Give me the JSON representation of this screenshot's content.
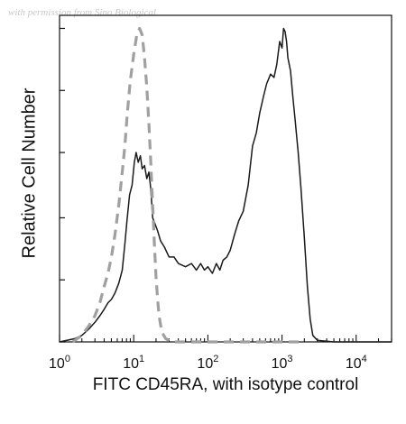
{
  "watermark": "with permission from Sino Biological",
  "chart_data": {
    "type": "line",
    "xlabel": "FITC CD45RA, with isotype control",
    "ylabel": "Relative Cell Number",
    "x_scale": "log",
    "xlim": [
      1,
      30000
    ],
    "ylim": [
      0,
      100
    ],
    "x_ticks": [
      {
        "value": 1,
        "base": "10",
        "exp": "0"
      },
      {
        "value": 10,
        "base": "10",
        "exp": "1"
      },
      {
        "value": 100,
        "base": "10",
        "exp": "2"
      },
      {
        "value": 1000,
        "base": "10",
        "exp": "3"
      },
      {
        "value": 10000,
        "base": "10",
        "exp": "4"
      }
    ],
    "y_ticks": [
      0,
      19,
      38,
      58,
      77,
      96
    ],
    "series": [
      {
        "style": "solid",
        "color": "#1a1a1a",
        "points": [
          [
            1.0,
            0
          ],
          [
            1.6,
            1
          ],
          [
            2.0,
            2
          ],
          [
            2.5,
            4
          ],
          [
            3.0,
            6
          ],
          [
            3.5,
            8
          ],
          [
            4.0,
            10
          ],
          [
            4.5,
            12
          ],
          [
            5.0,
            13
          ],
          [
            5.6,
            15
          ],
          [
            6.3,
            18
          ],
          [
            7.0,
            22
          ],
          [
            7.6,
            30
          ],
          [
            8.1,
            37
          ],
          [
            8.8,
            45
          ],
          [
            9.5,
            48
          ],
          [
            10.2,
            55
          ],
          [
            10.8,
            58
          ],
          [
            11.5,
            55
          ],
          [
            12.3,
            57
          ],
          [
            13.0,
            53
          ],
          [
            14.0,
            54
          ],
          [
            15.0,
            50
          ],
          [
            16.0,
            52
          ],
          [
            17.0,
            47
          ],
          [
            18.0,
            38
          ],
          [
            19.5,
            36
          ],
          [
            21.0,
            34
          ],
          [
            23.0,
            31
          ],
          [
            26.0,
            29
          ],
          [
            30.0,
            26
          ],
          [
            35.0,
            26
          ],
          [
            40.0,
            24
          ],
          [
            50.0,
            23
          ],
          [
            60.0,
            24
          ],
          [
            70.0,
            22
          ],
          [
            80.0,
            24
          ],
          [
            90.0,
            22
          ],
          [
            100.0,
            23
          ],
          [
            115.0,
            21
          ],
          [
            130.0,
            24
          ],
          [
            145.0,
            22
          ],
          [
            160.0,
            25
          ],
          [
            180.0,
            26
          ],
          [
            200.0,
            28
          ],
          [
            230.0,
            33
          ],
          [
            260.0,
            37
          ],
          [
            300.0,
            40
          ],
          [
            350.0,
            48
          ],
          [
            400.0,
            60
          ],
          [
            450.0,
            64
          ],
          [
            500.0,
            70
          ],
          [
            560.0,
            75
          ],
          [
            620.0,
            79
          ],
          [
            700.0,
            82
          ],
          [
            780.0,
            81
          ],
          [
            850.0,
            85
          ],
          [
            930.0,
            92
          ],
          [
            1000.0,
            90
          ],
          [
            1050.0,
            96
          ],
          [
            1100.0,
            95
          ],
          [
            1150.0,
            92
          ],
          [
            1200.0,
            87
          ],
          [
            1300.0,
            83
          ],
          [
            1400.0,
            75
          ],
          [
            1500.0,
            68
          ],
          [
            1650.0,
            58
          ],
          [
            1800.0,
            47
          ],
          [
            2000.0,
            32
          ],
          [
            2200.0,
            17
          ],
          [
            2400.0,
            7
          ],
          [
            2600.0,
            2
          ],
          [
            3000.0,
            0.5
          ],
          [
            5000.0,
            0
          ],
          [
            30000.0,
            0
          ]
        ]
      },
      {
        "style": "dashed",
        "color": "#a0a0a0",
        "points": [
          [
            1.5,
            0
          ],
          [
            2.0,
            2
          ],
          [
            2.5,
            5
          ],
          [
            3.0,
            8
          ],
          [
            3.5,
            12
          ],
          [
            4.0,
            17
          ],
          [
            4.5,
            21
          ],
          [
            5.0,
            26
          ],
          [
            5.6,
            33
          ],
          [
            6.3,
            42
          ],
          [
            7.0,
            52
          ],
          [
            7.6,
            60
          ],
          [
            8.2,
            70
          ],
          [
            9.0,
            80
          ],
          [
            10.0,
            88
          ],
          [
            11.0,
            94
          ],
          [
            12.0,
            96
          ],
          [
            13.0,
            94
          ],
          [
            14.0,
            87
          ],
          [
            15.0,
            78
          ],
          [
            16.0,
            67
          ],
          [
            17.0,
            55
          ],
          [
            18.0,
            42
          ],
          [
            19.0,
            30
          ],
          [
            20.0,
            20
          ],
          [
            21.0,
            13
          ],
          [
            22.0,
            8
          ],
          [
            24.0,
            3
          ],
          [
            27.0,
            1
          ],
          [
            32.0,
            0
          ],
          [
            2000.0,
            0
          ]
        ]
      }
    ]
  }
}
